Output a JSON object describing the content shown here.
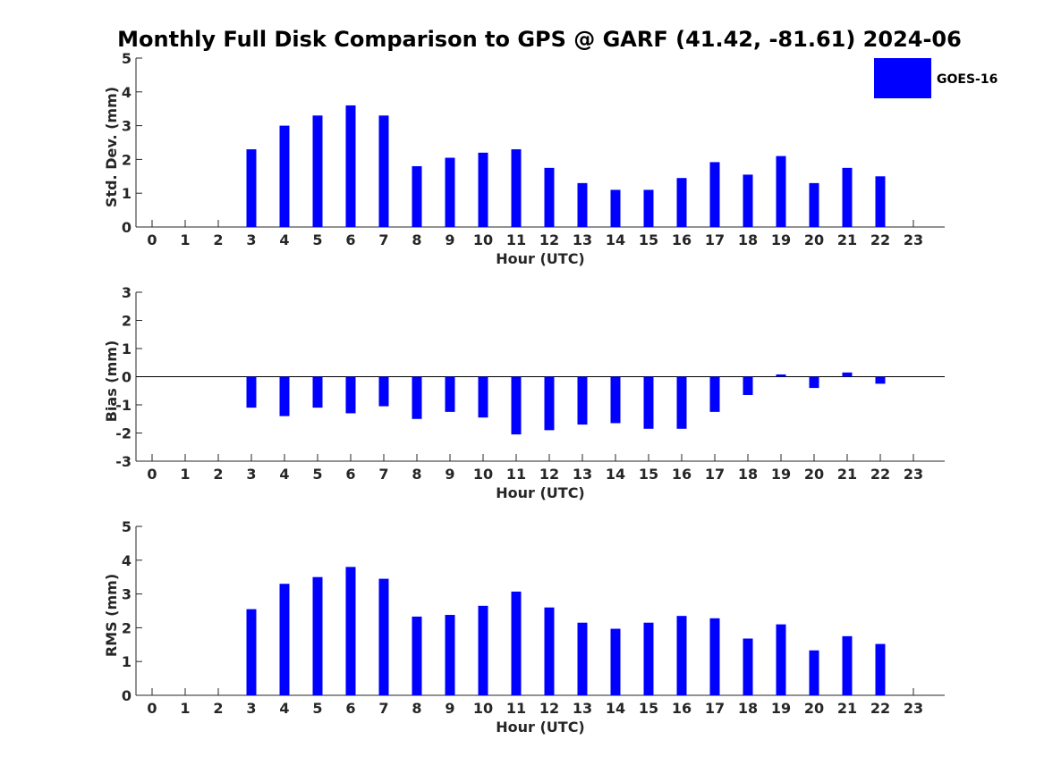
{
  "title": "Monthly Full Disk Comparison to GPS @ GARF (41.42, -81.61) 2024-06",
  "legend": {
    "label": "GOES-16",
    "color": "#0000ff"
  },
  "chart_data": [
    {
      "type": "bar",
      "ylabel": "Std. Dev. (mm)",
      "xlabel": "Hour (UTC)",
      "ylim": [
        0,
        5
      ],
      "yticks": [
        0,
        1,
        2,
        3,
        4,
        5
      ],
      "categories": [
        0,
        1,
        2,
        3,
        4,
        5,
        6,
        7,
        8,
        9,
        10,
        11,
        12,
        13,
        14,
        15,
        16,
        17,
        18,
        19,
        20,
        21,
        22,
        23
      ],
      "series": [
        {
          "name": "GOES-16",
          "values": [
            null,
            null,
            null,
            2.3,
            3.0,
            3.3,
            3.6,
            3.3,
            1.8,
            2.05,
            2.2,
            2.3,
            1.75,
            1.3,
            1.1,
            1.1,
            1.45,
            1.92,
            1.55,
            2.1,
            1.3,
            1.75,
            1.5,
            null
          ]
        }
      ]
    },
    {
      "type": "bar",
      "ylabel": "Bias (mm)",
      "xlabel": "Hour (UTC)",
      "ylim": [
        -3,
        3
      ],
      "yticks": [
        -3,
        -2,
        -1,
        0,
        1,
        2,
        3
      ],
      "categories": [
        0,
        1,
        2,
        3,
        4,
        5,
        6,
        7,
        8,
        9,
        10,
        11,
        12,
        13,
        14,
        15,
        16,
        17,
        18,
        19,
        20,
        21,
        22,
        23
      ],
      "series": [
        {
          "name": "GOES-16",
          "values": [
            null,
            null,
            null,
            -1.1,
            -1.4,
            -1.1,
            -1.3,
            -1.05,
            -1.5,
            -1.25,
            -1.45,
            -2.05,
            -1.9,
            -1.7,
            -1.65,
            -1.85,
            -1.85,
            -1.25,
            -0.65,
            0.08,
            -0.4,
            0.15,
            -0.25,
            null
          ]
        }
      ]
    },
    {
      "type": "bar",
      "ylabel": "RMS (mm)",
      "xlabel": "Hour (UTC)",
      "ylim": [
        0,
        5
      ],
      "yticks": [
        0,
        1,
        2,
        3,
        4,
        5
      ],
      "categories": [
        0,
        1,
        2,
        3,
        4,
        5,
        6,
        7,
        8,
        9,
        10,
        11,
        12,
        13,
        14,
        15,
        16,
        17,
        18,
        19,
        20,
        21,
        22,
        23
      ],
      "series": [
        {
          "name": "GOES-16",
          "values": [
            null,
            null,
            null,
            2.55,
            3.3,
            3.5,
            3.8,
            3.45,
            2.33,
            2.38,
            2.65,
            3.07,
            2.6,
            2.15,
            1.97,
            2.15,
            2.35,
            2.28,
            1.68,
            2.1,
            1.33,
            1.75,
            1.52,
            null
          ]
        }
      ]
    }
  ]
}
